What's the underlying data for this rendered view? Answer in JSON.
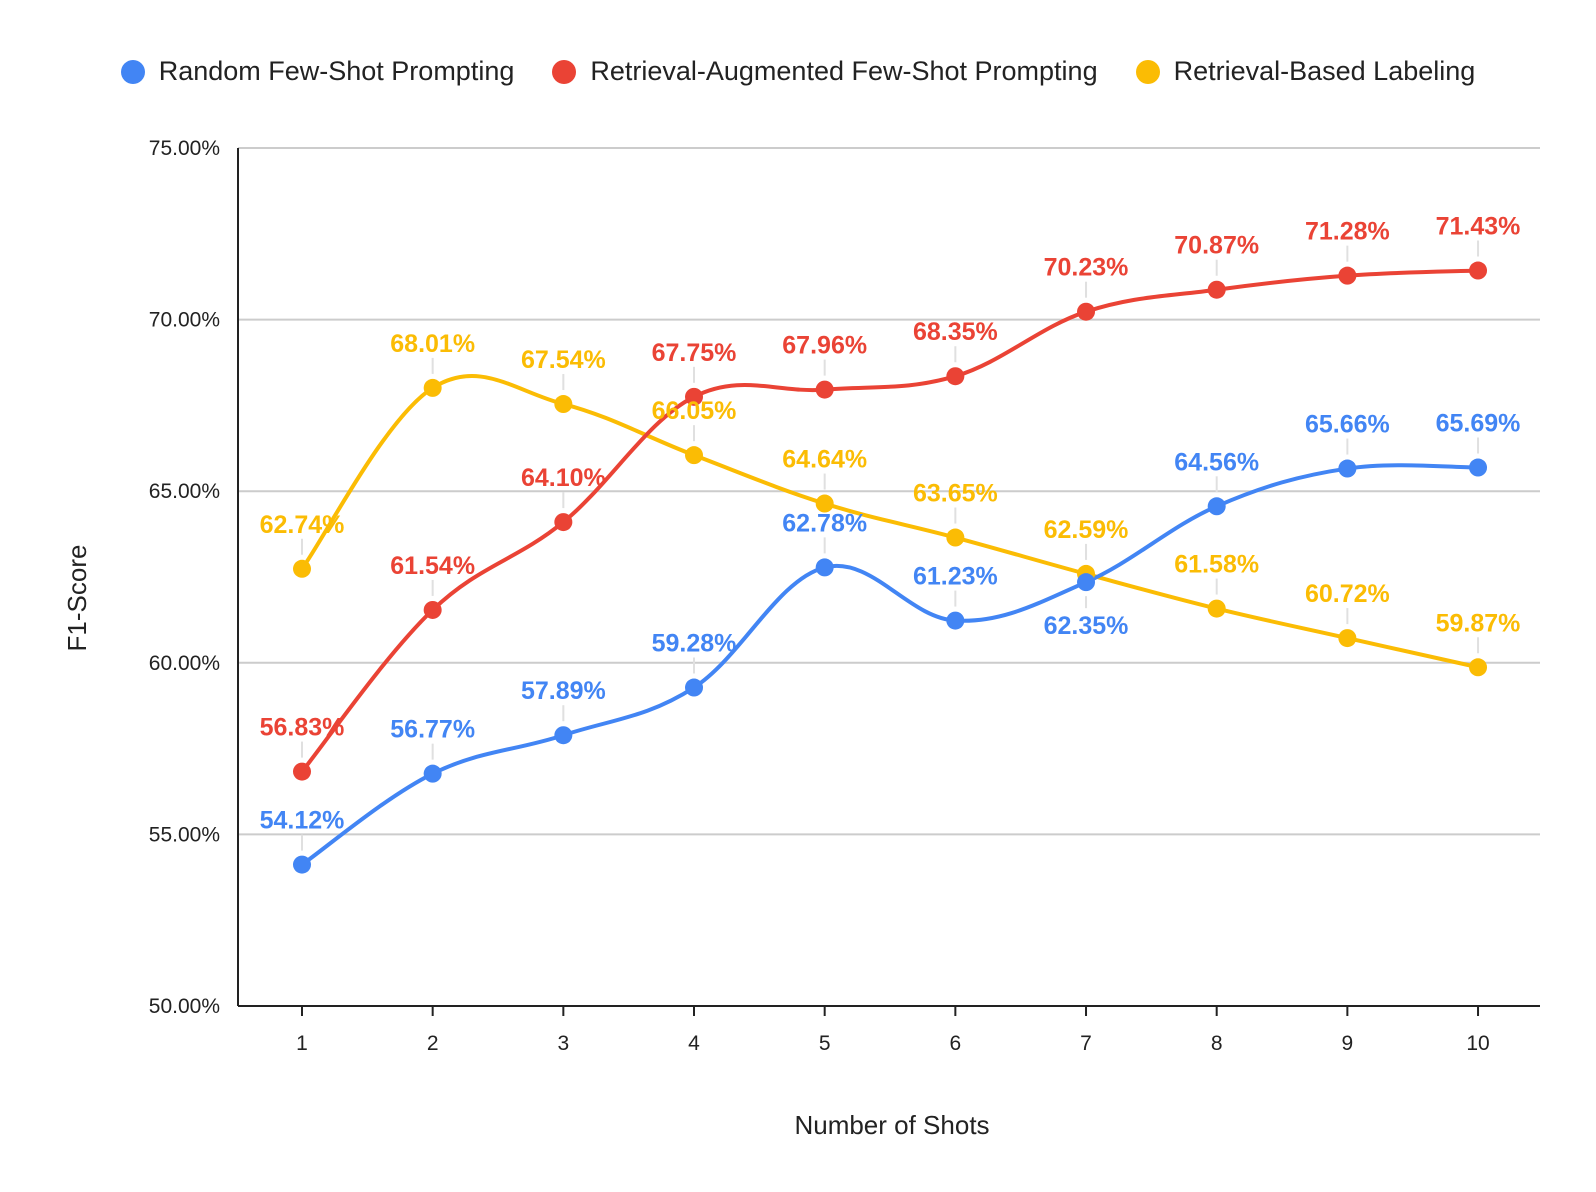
{
  "chart_data": {
    "type": "line",
    "title": "",
    "xlabel": "Number of Shots",
    "ylabel": "F1-Score",
    "ylim": [
      50,
      75
    ],
    "yticks": [
      "50.00%",
      "55.00%",
      "60.00%",
      "65.00%",
      "70.00%",
      "75.00%"
    ],
    "ytick_values": [
      50,
      55,
      60,
      65,
      70,
      75
    ],
    "categories": [
      "1",
      "2",
      "3",
      "4",
      "5",
      "6",
      "7",
      "8",
      "9",
      "10"
    ],
    "legend_position": "top-center",
    "series": [
      {
        "name": "Random Few-Shot Prompting",
        "color": "#4285f4",
        "values": [
          54.12,
          56.77,
          57.89,
          59.28,
          62.78,
          61.23,
          62.35,
          64.56,
          65.66,
          65.69
        ],
        "labels": [
          "54.12%",
          "56.77%",
          "57.89%",
          "59.28%",
          "62.78%",
          "61.23%",
          "62.35%",
          "64.56%",
          "65.66%",
          "65.69%"
        ],
        "label_side": [
          "above",
          "above",
          "above",
          "above",
          "above",
          "above",
          "below",
          "above",
          "above",
          "above"
        ]
      },
      {
        "name": "Retrieval-Augmented Few-Shot Prompting",
        "color": "#ea4335",
        "values": [
          56.83,
          61.54,
          64.1,
          67.75,
          67.96,
          68.35,
          70.23,
          70.87,
          71.28,
          71.43
        ],
        "labels": [
          "56.83%",
          "61.54%",
          "64.10%",
          "67.75%",
          "67.96%",
          "68.35%",
          "70.23%",
          "70.87%",
          "71.28%",
          "71.43%"
        ],
        "label_side": [
          "above",
          "above",
          "above",
          "above",
          "above",
          "above",
          "above",
          "above",
          "above",
          "above"
        ]
      },
      {
        "name": "Retrieval-Based Labeling",
        "color": "#fbbc04",
        "values": [
          62.74,
          68.01,
          67.54,
          66.05,
          64.64,
          63.65,
          62.59,
          61.58,
          60.72,
          59.87
        ],
        "labels": [
          "62.74%",
          "68.01%",
          "67.54%",
          "66.05%",
          "64.64%",
          "63.65%",
          "62.59%",
          "61.58%",
          "60.72%",
          "59.87%"
        ],
        "label_side": [
          "above",
          "above",
          "above",
          "above",
          "above",
          "above",
          "above",
          "above",
          "above",
          "above"
        ]
      }
    ]
  }
}
